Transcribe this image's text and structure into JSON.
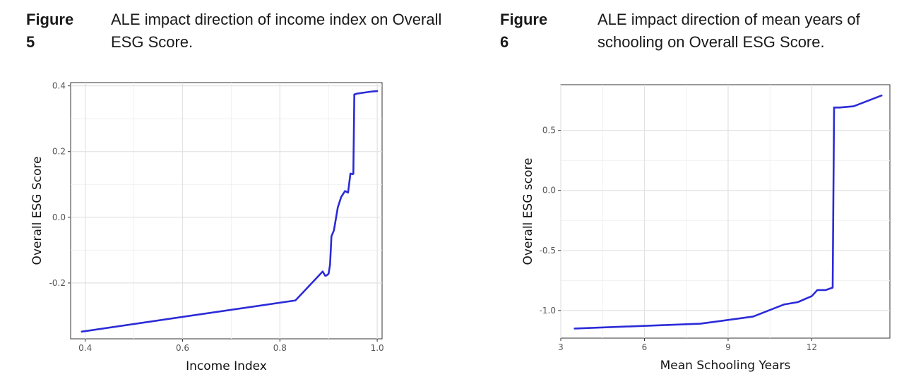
{
  "figures": [
    {
      "label": "Figure 5",
      "title": "ALE impact direction of income index on Overall ESG Score."
    },
    {
      "label": "Figure 6",
      "title": "ALE impact direction of mean years of schooling on Overall ESG Score."
    }
  ],
  "chart_data": [
    {
      "type": "line",
      "xlabel": "Income Index",
      "ylabel": "Overall ESG Score",
      "xlim": [
        0.37,
        1.01
      ],
      "ylim": [
        -0.37,
        0.41
      ],
      "xticks": [
        0.4,
        0.6,
        0.8,
        1.0
      ],
      "xtick_labels": [
        "0.4",
        "0.6",
        "0.8",
        "1.0"
      ],
      "yticks": [
        -0.2,
        0.0,
        0.2,
        0.4
      ],
      "ytick_labels": [
        "-0.2",
        "0.0",
        "0.2",
        "0.4"
      ],
      "grid": true,
      "line_color": "#2b2bd8",
      "series": [
        {
          "x": [
            0.393,
            0.832,
            0.888,
            0.893,
            0.896,
            0.9,
            0.903,
            0.906,
            0.911,
            0.919,
            0.926,
            0.934,
            0.94,
            0.942,
            0.945,
            0.949,
            0.951,
            0.953,
            0.956,
            0.957,
            0.961,
            0.966,
            0.97,
            0.975,
            0.98,
            0.985,
            0.991,
            1.0
          ],
          "y": [
            -0.348,
            -0.253,
            -0.165,
            -0.178,
            -0.177,
            -0.172,
            -0.145,
            -0.058,
            -0.04,
            0.03,
            0.062,
            0.08,
            0.075,
            0.097,
            0.133,
            0.131,
            0.132,
            0.374,
            0.375,
            0.376,
            0.377,
            0.378,
            0.379,
            0.38,
            0.381,
            0.382,
            0.383,
            0.384
          ]
        }
      ]
    },
    {
      "type": "line",
      "xlabel": "Mean Schooling Years",
      "ylabel": "Overall ESG score",
      "xlim": [
        3.0,
        14.8
      ],
      "ylim": [
        -1.23,
        0.88
      ],
      "xticks": [
        3,
        6,
        9,
        12
      ],
      "xtick_labels": [
        "3",
        "6",
        "9",
        "12"
      ],
      "yticks": [
        -1.0,
        -0.5,
        0.0,
        0.5
      ],
      "ytick_labels": [
        "-1.0",
        "-0.5",
        "0.0",
        "0.5"
      ],
      "grid": true,
      "line_color": "#2b2bd8",
      "series": [
        {
          "x": [
            3.5,
            8.0,
            9.9,
            11.0,
            11.5,
            12.0,
            12.2,
            12.5,
            12.75,
            12.8,
            13.0,
            13.5,
            14.5
          ],
          "y": [
            -1.15,
            -1.11,
            -1.05,
            -0.95,
            -0.93,
            -0.88,
            -0.83,
            -0.83,
            -0.81,
            0.69,
            0.69,
            0.7,
            0.79
          ]
        }
      ]
    }
  ]
}
